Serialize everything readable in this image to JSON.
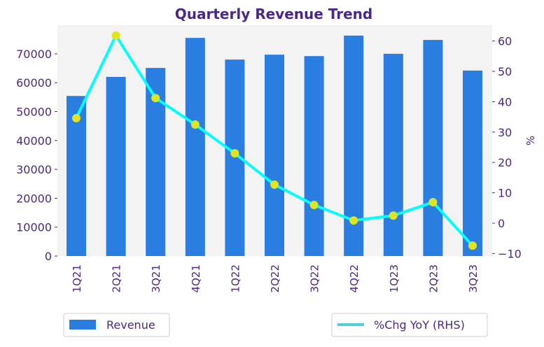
{
  "chart_data": {
    "type": "bar+line",
    "title": "Quarterly Revenue Trend",
    "categories": [
      "1Q21",
      "2Q21",
      "3Q21",
      "4Q21",
      "1Q22",
      "2Q22",
      "3Q22",
      "4Q22",
      "1Q23",
      "2Q23",
      "3Q23"
    ],
    "series": [
      {
        "name": "Revenue",
        "type": "bar",
        "axis": "left",
        "color": "#2a7de1",
        "values": [
          55400,
          62000,
          65100,
          75500,
          68000,
          69700,
          69200,
          76300,
          70000,
          74800,
          64200
        ]
      },
      {
        "name": "%Chg YoY (RHS)",
        "type": "line",
        "axis": "right",
        "color": "#00ffff",
        "marker_color": "#dfe51f",
        "values": [
          34.6,
          61.8,
          41.2,
          32.5,
          23.0,
          12.7,
          6.0,
          0.9,
          2.5,
          6.9,
          -7.4
        ]
      }
    ],
    "ylabel": "",
    "y2label": "%",
    "ylim": [
      0,
      80000
    ],
    "y2lim": [
      -11,
      65
    ],
    "yticks": [
      "0",
      "10000",
      "20000",
      "30000",
      "40000",
      "50000",
      "60000",
      "70000"
    ],
    "y2ticks": [
      "−10",
      "0",
      "10",
      "20",
      "30",
      "40",
      "50",
      "60"
    ],
    "legend": [
      "Revenue",
      "%Chg YoY (RHS)"
    ],
    "legend_placement": "bottom"
  }
}
